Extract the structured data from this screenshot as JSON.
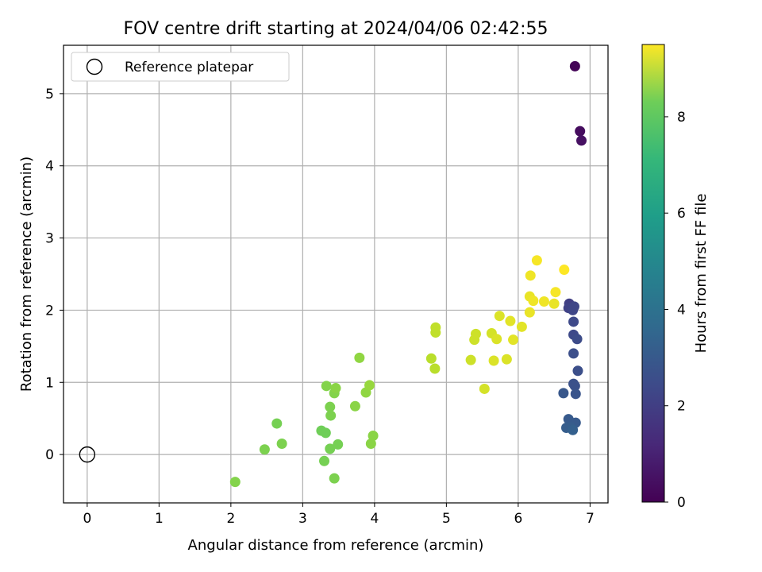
{
  "chart_data": {
    "type": "scatter",
    "title": "FOV centre drift starting at 2024/04/06 02:42:55",
    "xlabel": "Angular distance from reference (arcmin)",
    "ylabel": "Rotation from reference (arcmin)",
    "xlim": [
      -0.33,
      7.25
    ],
    "ylim": [
      -0.67,
      5.67
    ],
    "xticks": [
      0,
      1,
      2,
      3,
      4,
      5,
      6,
      7
    ],
    "yticks": [
      0,
      1,
      2,
      3,
      4,
      5
    ],
    "grid": true,
    "legend": {
      "placement": "top-left",
      "entries": [
        "Reference platepar"
      ]
    },
    "reference_point": {
      "x": 0,
      "y": 0,
      "label": "Reference platepar"
    },
    "colorbar": {
      "label": "Hours from first FF file",
      "colormap": "viridis",
      "range": [
        0,
        9.5
      ],
      "ticks": [
        0,
        2,
        4,
        6,
        8
      ]
    },
    "points": [
      {
        "x": 6.79,
        "y": 5.38,
        "h": 0.1
      },
      {
        "x": 6.86,
        "y": 4.48,
        "h": 0.3
      },
      {
        "x": 6.88,
        "y": 4.35,
        "h": 0.4
      },
      {
        "x": 6.71,
        "y": 2.09,
        "h": 1.8
      },
      {
        "x": 6.7,
        "y": 2.03,
        "h": 1.9
      },
      {
        "x": 6.76,
        "y": 2.0,
        "h": 2.0
      },
      {
        "x": 6.78,
        "y": 2.05,
        "h": 2.0
      },
      {
        "x": 6.77,
        "y": 1.84,
        "h": 2.1
      },
      {
        "x": 6.77,
        "y": 1.66,
        "h": 2.1
      },
      {
        "x": 6.82,
        "y": 1.6,
        "h": 2.2
      },
      {
        "x": 6.77,
        "y": 1.4,
        "h": 2.3
      },
      {
        "x": 6.83,
        "y": 1.16,
        "h": 2.3
      },
      {
        "x": 6.77,
        "y": 0.98,
        "h": 2.4
      },
      {
        "x": 6.79,
        "y": 0.95,
        "h": 2.4
      },
      {
        "x": 6.63,
        "y": 0.85,
        "h": 2.6
      },
      {
        "x": 6.8,
        "y": 0.84,
        "h": 2.5
      },
      {
        "x": 6.7,
        "y": 0.49,
        "h": 2.7
      },
      {
        "x": 6.8,
        "y": 0.44,
        "h": 2.7
      },
      {
        "x": 6.67,
        "y": 0.37,
        "h": 2.8
      },
      {
        "x": 6.73,
        "y": 0.38,
        "h": 2.8
      },
      {
        "x": 6.76,
        "y": 0.34,
        "h": 2.9
      },
      {
        "x": 2.06,
        "y": -0.38,
        "h": 7.7
      },
      {
        "x": 2.47,
        "y": 0.07,
        "h": 7.6
      },
      {
        "x": 2.64,
        "y": 0.43,
        "h": 7.5
      },
      {
        "x": 2.71,
        "y": 0.15,
        "h": 7.6
      },
      {
        "x": 3.26,
        "y": 0.33,
        "h": 7.4
      },
      {
        "x": 3.32,
        "y": 0.3,
        "h": 7.4
      },
      {
        "x": 3.3,
        "y": -0.09,
        "h": 7.5
      },
      {
        "x": 3.38,
        "y": 0.08,
        "h": 7.5
      },
      {
        "x": 3.44,
        "y": -0.33,
        "h": 7.6
      },
      {
        "x": 3.49,
        "y": 0.14,
        "h": 7.5
      },
      {
        "x": 3.33,
        "y": 0.95,
        "h": 7.7
      },
      {
        "x": 3.44,
        "y": 0.85,
        "h": 7.7
      },
      {
        "x": 3.46,
        "y": 0.92,
        "h": 7.8
      },
      {
        "x": 3.38,
        "y": 0.66,
        "h": 7.6
      },
      {
        "x": 3.39,
        "y": 0.54,
        "h": 7.6
      },
      {
        "x": 3.73,
        "y": 0.67,
        "h": 7.8
      },
      {
        "x": 3.79,
        "y": 1.34,
        "h": 7.9
      },
      {
        "x": 3.88,
        "y": 0.86,
        "h": 7.9
      },
      {
        "x": 3.93,
        "y": 0.96,
        "h": 8.0
      },
      {
        "x": 3.95,
        "y": 0.15,
        "h": 7.8
      },
      {
        "x": 3.98,
        "y": 0.26,
        "h": 7.8
      },
      {
        "x": 4.79,
        "y": 1.33,
        "h": 8.5
      },
      {
        "x": 4.84,
        "y": 1.19,
        "h": 8.5
      },
      {
        "x": 4.85,
        "y": 1.76,
        "h": 8.6
      },
      {
        "x": 4.85,
        "y": 1.69,
        "h": 8.6
      },
      {
        "x": 5.34,
        "y": 1.31,
        "h": 8.8
      },
      {
        "x": 5.39,
        "y": 1.59,
        "h": 8.8
      },
      {
        "x": 5.41,
        "y": 1.67,
        "h": 8.8
      },
      {
        "x": 5.53,
        "y": 0.91,
        "h": 8.9
      },
      {
        "x": 5.63,
        "y": 1.68,
        "h": 8.9
      },
      {
        "x": 5.66,
        "y": 1.3,
        "h": 9.0
      },
      {
        "x": 5.7,
        "y": 1.6,
        "h": 9.0
      },
      {
        "x": 5.74,
        "y": 1.92,
        "h": 9.0
      },
      {
        "x": 5.84,
        "y": 1.32,
        "h": 9.0
      },
      {
        "x": 5.89,
        "y": 1.85,
        "h": 9.1
      },
      {
        "x": 5.93,
        "y": 1.59,
        "h": 9.1
      },
      {
        "x": 6.05,
        "y": 1.77,
        "h": 9.1
      },
      {
        "x": 6.16,
        "y": 1.97,
        "h": 9.2
      },
      {
        "x": 6.16,
        "y": 2.19,
        "h": 9.2
      },
      {
        "x": 6.17,
        "y": 2.48,
        "h": 9.3
      },
      {
        "x": 6.21,
        "y": 2.13,
        "h": 9.3
      },
      {
        "x": 6.26,
        "y": 2.69,
        "h": 9.4
      },
      {
        "x": 6.36,
        "y": 2.12,
        "h": 9.3
      },
      {
        "x": 6.5,
        "y": 2.09,
        "h": 9.2
      },
      {
        "x": 6.52,
        "y": 2.25,
        "h": 9.4
      },
      {
        "x": 6.64,
        "y": 2.56,
        "h": 9.5
      }
    ]
  }
}
